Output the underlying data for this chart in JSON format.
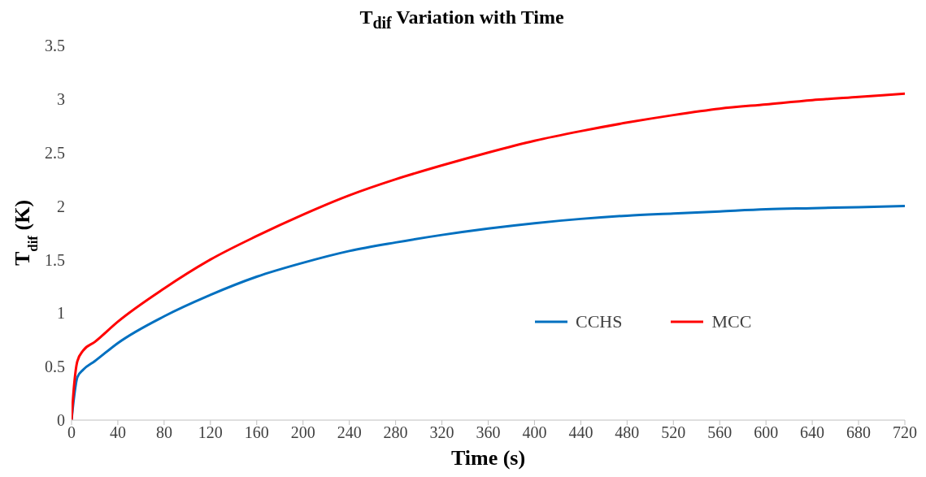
{
  "chart_data": {
    "type": "line",
    "title": "T$_{dif}$ Variation with Time",
    "xlabel": "Time (s)",
    "ylabel": "T$_{dif}$ (K)",
    "x": [
      0,
      2,
      5,
      10,
      20,
      40,
      80,
      120,
      160,
      200,
      240,
      280,
      320,
      360,
      400,
      440,
      480,
      520,
      560,
      600,
      640,
      680,
      720
    ],
    "series": [
      {
        "name": "CCHS",
        "color": "#0070c0",
        "values": [
          0,
          0.2,
          0.4,
          0.47,
          0.55,
          0.72,
          0.97,
          1.17,
          1.34,
          1.47,
          1.58,
          1.66,
          1.73,
          1.79,
          1.84,
          1.88,
          1.91,
          1.93,
          1.95,
          1.97,
          1.98,
          1.99,
          2.0
        ]
      },
      {
        "name": "MCC",
        "color": "#ff0000",
        "values": [
          0,
          0.3,
          0.55,
          0.65,
          0.73,
          0.92,
          1.23,
          1.5,
          1.72,
          1.92,
          2.1,
          2.25,
          2.38,
          2.5,
          2.61,
          2.7,
          2.78,
          2.85,
          2.91,
          2.95,
          2.99,
          3.02,
          3.05
        ]
      }
    ],
    "xlim": [
      0,
      720
    ],
    "xticks": [
      0,
      40,
      80,
      120,
      160,
      200,
      240,
      280,
      320,
      360,
      400,
      440,
      480,
      520,
      560,
      600,
      640,
      680,
      720
    ],
    "ylim": [
      0,
      3.5
    ],
    "yticks": [
      0,
      0.5,
      1,
      1.5,
      2,
      2.5,
      3,
      3.5
    ],
    "grid": false,
    "legend": "right",
    "marker": "none",
    "line_style": "solid"
  }
}
